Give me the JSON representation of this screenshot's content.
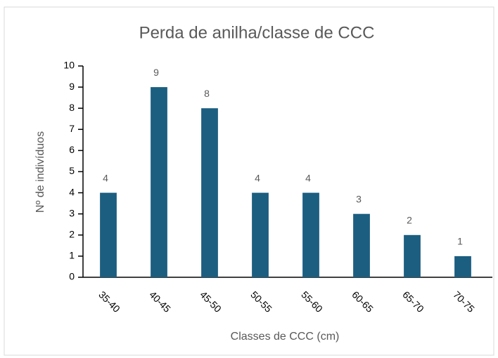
{
  "chart_data": {
    "type": "bar",
    "title": "Perda de anilha/classe de CCC",
    "x_label": "Classes de CCC (cm)",
    "y_label": "Nº de indivíduos",
    "categories": [
      "35-40",
      "40-45",
      "45-50",
      "50-55",
      "55-60",
      "60-65",
      "65-70",
      "70-75"
    ],
    "values": [
      4,
      9,
      8,
      4,
      4,
      3,
      2,
      1
    ],
    "color": "#1b5e80",
    "ylim": [
      0,
      10
    ],
    "yticks": [
      0,
      1,
      2,
      3,
      4,
      5,
      6,
      7,
      8,
      9,
      10
    ],
    "grid": false
  }
}
